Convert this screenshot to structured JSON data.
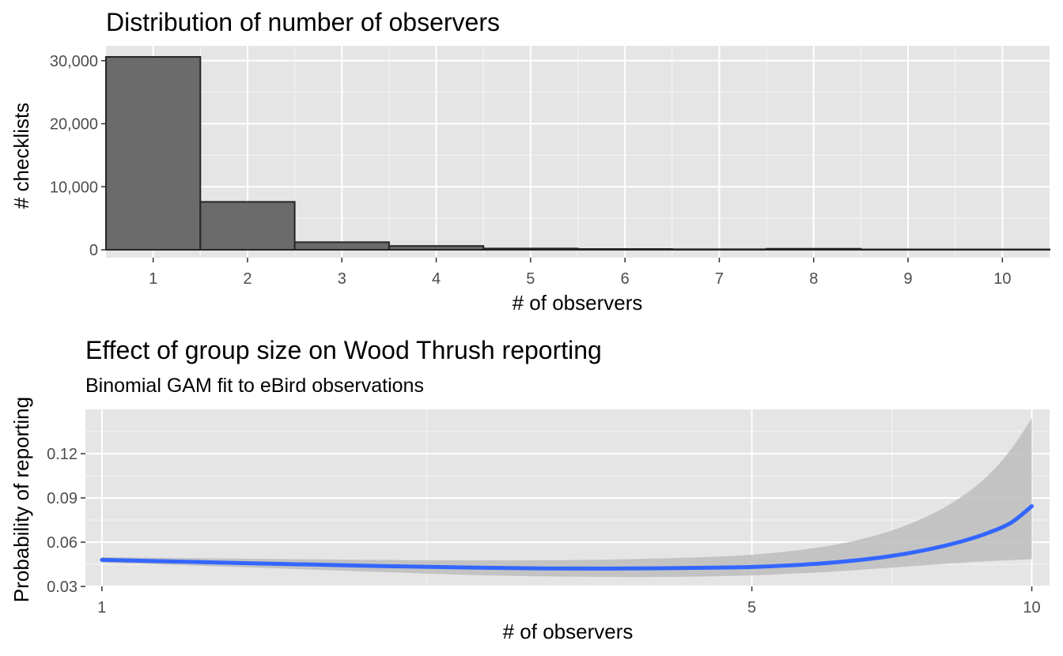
{
  "colors": {
    "panel_background": "#e5e5e5",
    "grid_major": "#ffffff",
    "bar_fill": "#6b6b6b",
    "bar_outline": "#262626",
    "line": "#3366ff",
    "ribbon": "#bdbdbd",
    "tick_label": "#4d4d4d"
  },
  "chart_data": [
    {
      "type": "bar",
      "title": "Distribution of number of observers",
      "xlabel": "# of observers",
      "ylabel": "# checklists",
      "categories": [
        1,
        2,
        3,
        4,
        5,
        6,
        7,
        8,
        9,
        10
      ],
      "values": [
        30600,
        7600,
        1200,
        600,
        200,
        120,
        80,
        160,
        60,
        60
      ],
      "xlim": [
        0.5,
        10.5
      ],
      "ylim": [
        0,
        30600
      ],
      "y_ticks": [
        0,
        10000,
        20000,
        30000
      ],
      "y_tick_labels": [
        "0",
        "10,000",
        "20,000",
        "30,000"
      ],
      "x_ticks": [
        1,
        2,
        3,
        4,
        5,
        6,
        7,
        8,
        9,
        10
      ],
      "x_tick_labels": [
        "1",
        "2",
        "3",
        "4",
        "5",
        "6",
        "7",
        "8",
        "9",
        "10"
      ],
      "grid": true
    },
    {
      "type": "line",
      "title": "Effect of group size on Wood Thrush reporting",
      "subtitle": "Binomial GAM fit to eBird observations",
      "xlabel": "# of observers",
      "ylabel": "Probability of reporting",
      "x_scale": "log",
      "x": [
        1,
        1.5,
        2,
        2.5,
        3,
        3.5,
        4,
        4.5,
        5,
        5.5,
        6,
        6.5,
        7,
        7.5,
        8,
        8.5,
        9,
        9.5,
        10
      ],
      "series": [
        {
          "y": [
            0.048,
            0.0455,
            0.0438,
            0.0428,
            0.0422,
            0.0421,
            0.0423,
            0.0427,
            0.0432,
            0.0443,
            0.0458,
            0.0478,
            0.0503,
            0.0534,
            0.0571,
            0.0614,
            0.0666,
            0.0732,
            0.0844
          ],
          "lower": [
            0.0462,
            0.0425,
            0.0398,
            0.0378,
            0.0368,
            0.0364,
            0.0364,
            0.0368,
            0.0375,
            0.0386,
            0.0398,
            0.0412,
            0.0426,
            0.0439,
            0.0452,
            0.0463,
            0.0472,
            0.0479,
            0.0485
          ],
          "upper": [
            0.0499,
            0.0487,
            0.048,
            0.0477,
            0.0478,
            0.0482,
            0.049,
            0.05,
            0.0515,
            0.054,
            0.0572,
            0.0615,
            0.067,
            0.074,
            0.0825,
            0.093,
            0.106,
            0.123,
            0.144
          ]
        }
      ],
      "xlim": [
        0.96,
        10.45
      ],
      "ylim": [
        0.03,
        0.15
      ],
      "x_ticks": [
        1,
        5,
        10
      ],
      "x_tick_labels": [
        "1",
        "5",
        "10"
      ],
      "y_ticks": [
        0.03,
        0.06,
        0.09,
        0.12
      ],
      "y_tick_labels": [
        "0.03",
        "0.06",
        "0.09",
        "0.12"
      ],
      "grid": true
    }
  ]
}
